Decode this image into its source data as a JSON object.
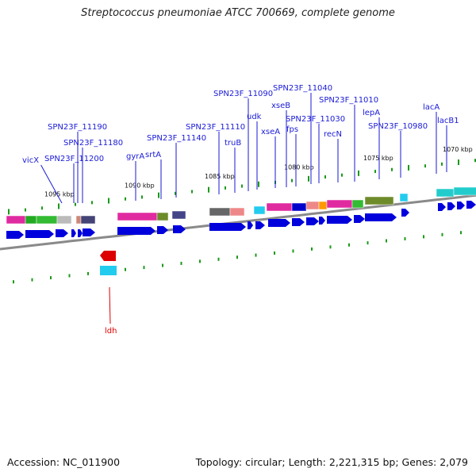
{
  "title": "Streptococcus pneumoniae ATCC 700669, complete genome",
  "footer": {
    "accession": "Accession: NC_011900",
    "summary": "Topology: circular; Length: 2,221,315 bp; Genes: 2,079"
  },
  "colors": {
    "gene_label": "#1a1ad6",
    "negative_strand_label": "#e00000",
    "forward_cds": "#0000dd",
    "reverse_cds": "#dd0000",
    "gc_tick": "#1a9a1a",
    "backbone": "#8a8a8a"
  },
  "scale_labels": [
    "1095 kbp",
    "1090 kbp",
    "1085 kbp",
    "1080 kbp",
    "1075 kbp",
    "1070 kbp"
  ],
  "gene_labels": [
    "vicX",
    "SPN23F_11200",
    "SPN23F_11190",
    "SPN23F_11180",
    "gyrA",
    "srtA",
    "SPN23F_11140",
    "SPN23F_11110",
    "truB",
    "SPN23F_11090",
    "udk",
    "xseA",
    "xseB",
    "fps",
    "SPN23F_11040",
    "SPN23F_11030",
    "recN",
    "SPN23F_11010",
    "lepA",
    "SPN23F_10980",
    "lacA",
    "lacB1"
  ],
  "negative_strand_labels": [
    "ldh"
  ]
}
